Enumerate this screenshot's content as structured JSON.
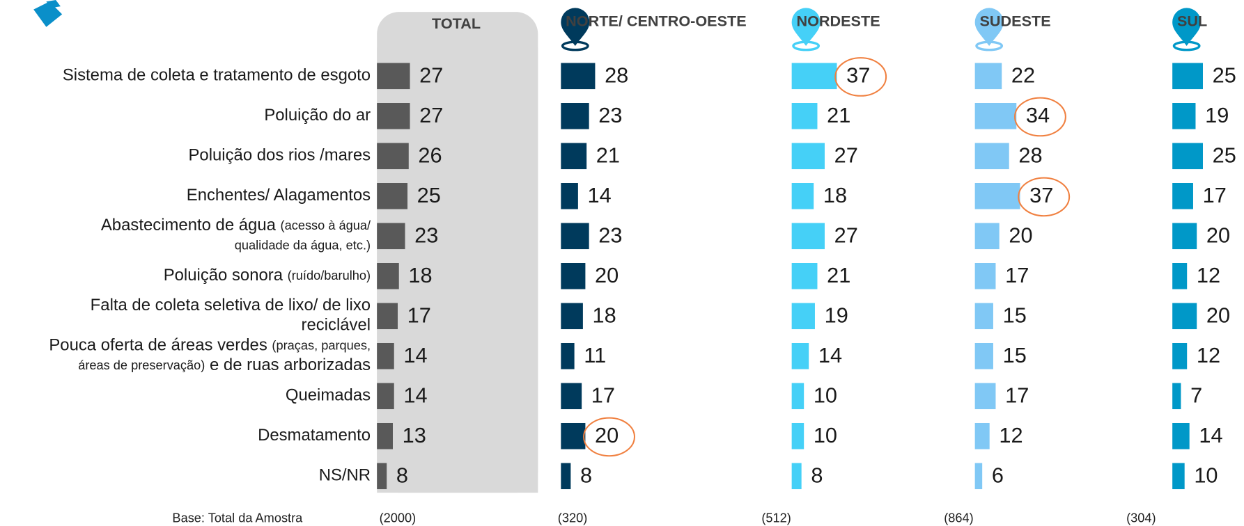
{
  "chart_data": {
    "type": "bar",
    "orientation": "horizontal",
    "categories": [
      [
        [
          {
            "text": "Sistema de coleta e tratamento de esgoto"
          }
        ]
      ],
      [
        [
          {
            "text": "Poluição do ar"
          }
        ]
      ],
      [
        [
          {
            "text": "Poluição dos rios /mares"
          }
        ]
      ],
      [
        [
          {
            "text": "Enchentes/ Alagamentos"
          }
        ]
      ],
      [
        [
          {
            "text": "Abastecimento de água "
          },
          {
            "text": "(acesso à água/",
            "small": true
          }
        ],
        [
          {
            "text": "qualidade da água, etc.)",
            "small": true
          }
        ]
      ],
      [
        [
          {
            "text": "Poluição sonora "
          },
          {
            "text": "(ruído/barulho)",
            "small": true
          }
        ]
      ],
      [
        [
          {
            "text": "Falta de coleta seletiva de lixo/ de lixo"
          }
        ],
        [
          {
            "text": "reciclável"
          }
        ]
      ],
      [
        [
          {
            "text": "Pouca oferta de áreas verdes "
          },
          {
            "text": "(praças, parques,",
            "small": true
          }
        ],
        [
          {
            "text": "áreas de preservação)",
            "small": true
          },
          {
            "text": " e de ruas arborizadas"
          }
        ]
      ],
      [
        [
          {
            "text": "Queimadas"
          }
        ]
      ],
      [
        [
          {
            "text": "Desmatamento"
          }
        ]
      ],
      [
        [
          {
            "text": "NS/NR"
          }
        ]
      ]
    ],
    "base_label": "Base: Total da Amostra",
    "series": [
      {
        "name": "TOTAL",
        "color": "#595959",
        "base": "(2000)",
        "values": [
          27,
          27,
          26,
          25,
          23,
          18,
          17,
          14,
          14,
          13,
          8
        ],
        "circled": []
      },
      {
        "name": "NORTE/ CENTRO-OESTE",
        "color": "#003a5c",
        "base": "(320)",
        "values": [
          28,
          23,
          21,
          14,
          23,
          20,
          18,
          11,
          17,
          20,
          8
        ],
        "circled": [
          9
        ]
      },
      {
        "name": "NORDESTE",
        "color": "#45d0f7",
        "base": "(512)",
        "values": [
          37,
          21,
          27,
          18,
          27,
          21,
          19,
          14,
          10,
          10,
          8
        ],
        "circled": [
          0
        ]
      },
      {
        "name": "SUDESTE",
        "color": "#80c8f5",
        "base": "(864)",
        "values": [
          22,
          34,
          28,
          37,
          20,
          17,
          15,
          15,
          17,
          12,
          6
        ],
        "circled": [
          1,
          3
        ]
      },
      {
        "name": "SUL",
        "color": "#0098c8",
        "base": "(304)",
        "values": [
          25,
          19,
          25,
          17,
          20,
          12,
          20,
          12,
          7,
          14,
          10
        ],
        "circled": []
      }
    ]
  }
}
